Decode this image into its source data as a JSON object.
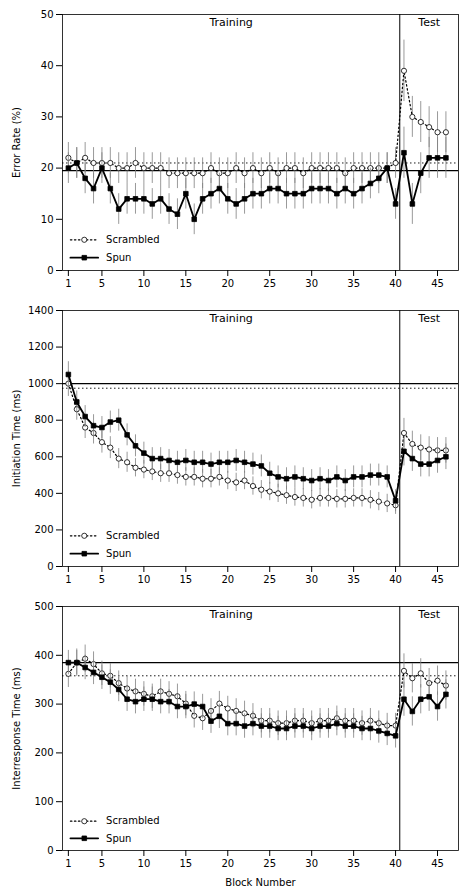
{
  "chart_data": [
    {
      "type": "line",
      "ylabel": "Error Rate (%)",
      "x": [
        1,
        2,
        3,
        4,
        5,
        6,
        7,
        8,
        9,
        10,
        11,
        12,
        13,
        14,
        15,
        16,
        17,
        18,
        19,
        20,
        21,
        22,
        23,
        24,
        25,
        26,
        27,
        28,
        29,
        30,
        31,
        32,
        33,
        34,
        35,
        36,
        37,
        38,
        39,
        40,
        41,
        42,
        43,
        44,
        45,
        46
      ],
      "xlim": [
        0.3,
        47.5
      ],
      "xticks": [
        1,
        5,
        10,
        15,
        20,
        25,
        30,
        35,
        40,
        45
      ],
      "ylim": [
        0,
        50
      ],
      "yticks": [
        0,
        10,
        20,
        30,
        40,
        50
      ],
      "grid": false,
      "legend": "lower left",
      "vline": 40.5,
      "annotations": [
        {
          "text": "Training"
        },
        {
          "text": "Test"
        }
      ],
      "series": [
        {
          "name": "Scrambled",
          "color": "black",
          "marker": "open_circle",
          "line_style": "dotted",
          "reference_line": 21.0,
          "values": [
            22,
            21,
            22,
            21,
            21,
            21,
            20,
            20,
            21,
            20,
            20,
            20,
            19,
            19,
            19,
            19,
            19,
            20,
            19,
            19,
            20,
            19,
            20,
            19,
            20,
            19,
            20,
            20,
            19,
            20,
            20,
            20,
            20,
            19,
            20,
            20,
            20,
            20,
            20,
            21,
            39,
            30,
            29,
            28,
            27,
            27
          ],
          "errors": [
            3,
            3,
            3,
            3,
            3,
            3,
            3,
            3,
            3,
            3,
            3,
            3,
            3,
            3,
            3,
            3,
            3,
            3,
            3,
            3,
            3,
            3,
            3,
            3,
            3,
            3,
            3,
            3,
            3,
            3,
            3,
            3,
            3,
            3,
            3,
            3,
            3,
            3,
            3,
            3,
            6,
            4,
            4,
            4,
            4,
            4
          ]
        },
        {
          "name": "Spun",
          "color": "black",
          "marker": "square",
          "line_style": "solid",
          "reference_line": 19.5,
          "values": [
            20,
            21,
            18,
            16,
            20,
            16,
            12,
            14,
            14,
            14,
            13,
            14,
            12,
            11,
            15,
            10,
            14,
            15,
            16,
            14,
            13,
            14,
            15,
            15,
            16,
            16,
            15,
            15,
            15,
            16,
            16,
            16,
            15,
            16,
            15,
            16,
            17,
            18,
            20,
            13,
            23,
            13,
            19,
            22,
            22,
            22
          ],
          "errors": [
            3,
            3,
            3,
            3,
            3,
            3,
            3,
            3,
            3,
            3,
            3,
            3,
            3,
            3,
            3,
            3,
            3,
            3,
            3,
            3,
            3,
            3,
            3,
            3,
            3,
            3,
            3,
            3,
            3,
            3,
            3,
            3,
            3,
            3,
            3,
            3,
            3,
            3,
            3,
            3,
            5,
            4,
            4,
            4,
            4,
            4
          ]
        }
      ]
    },
    {
      "type": "line",
      "ylabel": "Initiation Time (ms)",
      "x": [
        1,
        2,
        3,
        4,
        5,
        6,
        7,
        8,
        9,
        10,
        11,
        12,
        13,
        14,
        15,
        16,
        17,
        18,
        19,
        20,
        21,
        22,
        23,
        24,
        25,
        26,
        27,
        28,
        29,
        30,
        31,
        32,
        33,
        34,
        35,
        36,
        37,
        38,
        39,
        40,
        41,
        42,
        43,
        44,
        45,
        46
      ],
      "xlim": [
        0.3,
        47.5
      ],
      "xticks": [
        1,
        5,
        10,
        15,
        20,
        25,
        30,
        35,
        40,
        45
      ],
      "ylim": [
        0,
        1400
      ],
      "yticks": [
        0,
        200,
        400,
        600,
        800,
        1000,
        1200,
        1400
      ],
      "grid": false,
      "legend": "lower left",
      "vline": 40.5,
      "annotations": [
        {
          "text": "Training"
        },
        {
          "text": "Test"
        }
      ],
      "series": [
        {
          "name": "Scrambled",
          "color": "black",
          "marker": "open_circle",
          "line_style": "dotted",
          "reference_line": 975,
          "values": [
            1000,
            860,
            760,
            730,
            680,
            650,
            590,
            570,
            540,
            530,
            520,
            510,
            510,
            500,
            490,
            490,
            480,
            480,
            490,
            470,
            460,
            470,
            440,
            420,
            410,
            400,
            390,
            380,
            375,
            365,
            375,
            375,
            370,
            370,
            375,
            375,
            365,
            355,
            345,
            335,
            730,
            670,
            650,
            640,
            635,
            635
          ],
          "errors": [
            70,
            60,
            60,
            60,
            60,
            60,
            55,
            55,
            50,
            50,
            50,
            50,
            50,
            50,
            50,
            50,
            50,
            50,
            50,
            50,
            50,
            50,
            50,
            50,
            50,
            50,
            50,
            50,
            50,
            50,
            50,
            50,
            50,
            50,
            50,
            50,
            50,
            50,
            50,
            50,
            80,
            70,
            70,
            70,
            70,
            70
          ]
        },
        {
          "name": "Spun",
          "color": "black",
          "marker": "square",
          "line_style": "solid",
          "reference_line": 1000,
          "values": [
            1050,
            900,
            820,
            770,
            760,
            790,
            800,
            720,
            660,
            620,
            590,
            590,
            580,
            570,
            580,
            570,
            570,
            560,
            570,
            570,
            580,
            570,
            560,
            550,
            510,
            490,
            480,
            490,
            480,
            470,
            480,
            470,
            490,
            470,
            490,
            490,
            500,
            500,
            490,
            360,
            630,
            590,
            560,
            560,
            580,
            600
          ],
          "errors": [
            70,
            60,
            60,
            60,
            60,
            60,
            60,
            60,
            60,
            60,
            60,
            60,
            60,
            60,
            60,
            60,
            60,
            60,
            60,
            60,
            60,
            60,
            60,
            60,
            60,
            60,
            60,
            60,
            60,
            60,
            60,
            60,
            60,
            60,
            60,
            60,
            60,
            60,
            60,
            60,
            80,
            70,
            70,
            70,
            70,
            70
          ]
        }
      ]
    },
    {
      "type": "line",
      "ylabel": "Interresponse Time (ms)",
      "xlabel": "Block Number",
      "x": [
        1,
        2,
        3,
        4,
        5,
        6,
        7,
        8,
        9,
        10,
        11,
        12,
        13,
        14,
        15,
        16,
        17,
        18,
        19,
        20,
        21,
        22,
        23,
        24,
        25,
        26,
        27,
        28,
        29,
        30,
        31,
        32,
        33,
        34,
        35,
        36,
        37,
        38,
        39,
        40,
        41,
        42,
        43,
        44,
        45,
        46
      ],
      "xlim": [
        0.3,
        47.5
      ],
      "xticks": [
        1,
        5,
        10,
        15,
        20,
        25,
        30,
        35,
        40,
        45
      ],
      "ylim": [
        0,
        500
      ],
      "yticks": [
        0,
        100,
        200,
        300,
        400,
        500
      ],
      "grid": false,
      "legend": "lower left",
      "vline": 40.5,
      "annotations": [
        {
          "text": "Training"
        },
        {
          "text": "Test"
        }
      ],
      "series": [
        {
          "name": "Scrambled",
          "color": "black",
          "marker": "open_circle",
          "line_style": "dotted",
          "reference_line": 358,
          "values": [
            362,
            385,
            393,
            382,
            363,
            358,
            343,
            332,
            326,
            321,
            316,
            326,
            321,
            316,
            301,
            276,
            271,
            286,
            301,
            291,
            286,
            281,
            276,
            266,
            266,
            261,
            261,
            266,
            266,
            261,
            266,
            266,
            271,
            266,
            266,
            261,
            266,
            261,
            256,
            256,
            368,
            353,
            363,
            343,
            348,
            338
          ],
          "errors": [
            28,
            28,
            28,
            25,
            25,
            25,
            25,
            25,
            25,
            25,
            25,
            25,
            25,
            25,
            25,
            25,
            25,
            25,
            25,
            25,
            25,
            25,
            25,
            25,
            25,
            25,
            25,
            25,
            25,
            25,
            25,
            25,
            25,
            25,
            25,
            25,
            25,
            25,
            25,
            25,
            35,
            30,
            30,
            30,
            30,
            30
          ]
        },
        {
          "name": "Spun",
          "color": "black",
          "marker": "square",
          "line_style": "solid",
          "reference_line": 385,
          "values": [
            385,
            385,
            375,
            365,
            355,
            345,
            330,
            310,
            305,
            310,
            310,
            305,
            305,
            295,
            295,
            300,
            295,
            265,
            275,
            260,
            260,
            255,
            260,
            255,
            255,
            250,
            250,
            255,
            255,
            250,
            255,
            255,
            260,
            255,
            255,
            250,
            250,
            245,
            240,
            235,
            310,
            285,
            310,
            315,
            295,
            320
          ],
          "errors": [
            25,
            25,
            25,
            25,
            25,
            25,
            25,
            25,
            25,
            25,
            25,
            25,
            25,
            25,
            25,
            25,
            25,
            25,
            25,
            25,
            25,
            25,
            25,
            25,
            25,
            25,
            25,
            25,
            25,
            25,
            25,
            25,
            25,
            25,
            25,
            25,
            25,
            25,
            25,
            25,
            35,
            30,
            30,
            30,
            30,
            30
          ]
        }
      ]
    }
  ]
}
